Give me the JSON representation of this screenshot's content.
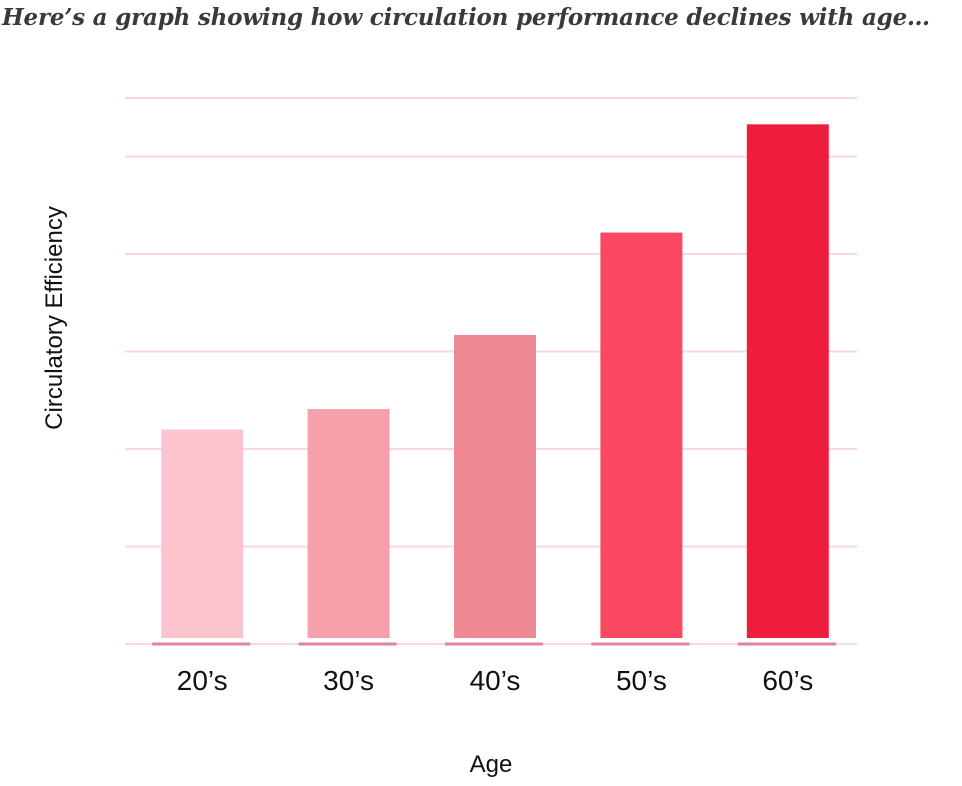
{
  "heading": "Here’s a graph showing how circulation performance declines with age…",
  "chart_data": {
    "type": "bar",
    "categories": [
      "20’s",
      "30’s",
      "40’s",
      "50’s",
      "60’s"
    ],
    "values": [
      22,
      24.1,
      31.7,
      42.2,
      53.3
    ],
    "colors": [
      "#fcc5cd",
      "#f5a0aa",
      "#ee8893",
      "#fa4862",
      "#ee1d3b"
    ],
    "title": "",
    "xlabel": "Age",
    "ylabel": "Circulatory Efficiency",
    "ylim": [
      0,
      56
    ],
    "gridlines": [
      10,
      20,
      30,
      40,
      50,
      56
    ],
    "grid_color": "#f8d9de",
    "baseline_color": "#d9859f",
    "grid": true
  }
}
